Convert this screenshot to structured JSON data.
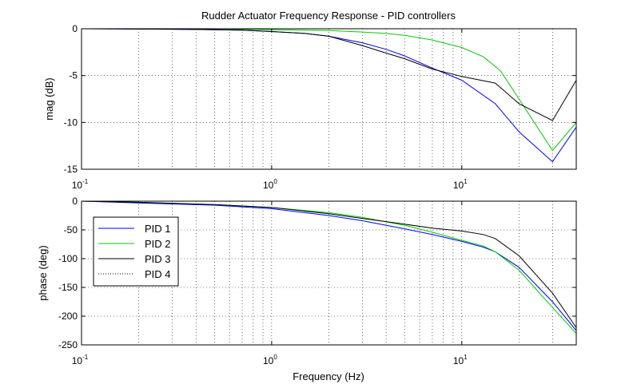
{
  "chart_data": [
    {
      "type": "line",
      "title": "Rudder Actuator Frequency Response - PID controllers",
      "xlabel": "",
      "ylabel": "mag (dB)",
      "xscale": "log",
      "xlim": [
        0.1,
        40
      ],
      "ylim": [
        -15,
        0
      ],
      "yticks": [
        0,
        -5,
        -10,
        -15
      ],
      "ytick_labels": [
        "0",
        "-5",
        "-10",
        "-15"
      ],
      "xtick_labels": [
        {
          "base": "10",
          "exp": "-1"
        },
        {
          "base": "10",
          "exp": "0"
        },
        {
          "base": "10",
          "exp": "1"
        }
      ],
      "grid": true,
      "series": [
        {
          "name": "PID 1",
          "color": "#0000ff",
          "points": [
            [
              0.1,
              0
            ],
            [
              0.3,
              -0.05
            ],
            [
              0.5,
              -0.1
            ],
            [
              0.7,
              -0.15
            ],
            [
              1,
              -0.3
            ],
            [
              1.5,
              -0.5
            ],
            [
              2,
              -0.8
            ],
            [
              3,
              -1.5
            ],
            [
              4,
              -2.2
            ],
            [
              5,
              -2.9
            ],
            [
              7,
              -4.2
            ],
            [
              10,
              -5.5
            ],
            [
              15,
              -8
            ],
            [
              20,
              -11
            ],
            [
              30,
              -14.2
            ],
            [
              40,
              -10.5
            ]
          ]
        },
        {
          "name": "PID 2",
          "color": "#00cc00",
          "points": [
            [
              0.1,
              0
            ],
            [
              0.5,
              0
            ],
            [
              1,
              -0.1
            ],
            [
              2,
              -0.2
            ],
            [
              3,
              -0.35
            ],
            [
              4,
              -0.5
            ],
            [
              5,
              -0.7
            ],
            [
              7,
              -1.2
            ],
            [
              10,
              -2
            ],
            [
              13,
              -3
            ],
            [
              16,
              -4.5
            ],
            [
              20,
              -7.5
            ],
            [
              30,
              -13
            ],
            [
              40,
              -10
            ]
          ]
        },
        {
          "name": "PID 3",
          "color": "#000000",
          "points": [
            [
              0.1,
              0
            ],
            [
              0.3,
              -0.05
            ],
            [
              0.5,
              -0.1
            ],
            [
              0.7,
              -0.15
            ],
            [
              1,
              -0.3
            ],
            [
              1.5,
              -0.5
            ],
            [
              2,
              -0.8
            ],
            [
              3,
              -1.8
            ],
            [
              4,
              -2.6
            ],
            [
              5,
              -3.2
            ],
            [
              7,
              -4.3
            ],
            [
              10,
              -5.1
            ],
            [
              15,
              -5.8
            ],
            [
              20,
              -8
            ],
            [
              30,
              -9.8
            ],
            [
              40,
              -5.5
            ]
          ]
        },
        {
          "name": "PID 4",
          "color": "#000000",
          "dash": "1,2",
          "points": []
        }
      ],
      "legend": {
        "location": "none"
      }
    },
    {
      "type": "line",
      "title": "",
      "xlabel": "Frequency (Hz)",
      "ylabel": "phase (deg)",
      "xscale": "log",
      "xlim": [
        0.1,
        40
      ],
      "ylim": [
        -250,
        0
      ],
      "yticks": [
        0,
        -50,
        -100,
        -150,
        -200,
        -250
      ],
      "ytick_labels": [
        "0",
        "-50",
        "-100",
        "-150",
        "-200",
        "-250"
      ],
      "xtick_labels": [
        {
          "base": "10",
          "exp": "-1"
        },
        {
          "base": "10",
          "exp": "0"
        },
        {
          "base": "10",
          "exp": "1"
        }
      ],
      "grid": true,
      "series": [
        {
          "name": "PID 1",
          "color": "#0000ff",
          "points": [
            [
              0.1,
              0
            ],
            [
              0.2,
              -3
            ],
            [
              0.5,
              -7
            ],
            [
              1,
              -13
            ],
            [
              2,
              -25
            ],
            [
              3,
              -34
            ],
            [
              5,
              -48
            ],
            [
              7,
              -58
            ],
            [
              10,
              -70
            ],
            [
              13,
              -80
            ],
            [
              15,
              -88
            ],
            [
              20,
              -115
            ],
            [
              30,
              -175
            ],
            [
              40,
              -225
            ]
          ]
        },
        {
          "name": "PID 2",
          "color": "#00cc00",
          "points": [
            [
              0.1,
              0
            ],
            [
              0.2,
              -2
            ],
            [
              0.5,
              -6
            ],
            [
              1,
              -11
            ],
            [
              2,
              -20
            ],
            [
              3,
              -28
            ],
            [
              5,
              -42
            ],
            [
              7,
              -54
            ],
            [
              10,
              -68
            ],
            [
              13,
              -78
            ],
            [
              15,
              -88
            ],
            [
              20,
              -120
            ],
            [
              30,
              -185
            ],
            [
              40,
              -230
            ]
          ]
        },
        {
          "name": "PID 3",
          "color": "#000000",
          "points": [
            [
              0.1,
              0
            ],
            [
              0.2,
              -2
            ],
            [
              0.5,
              -6
            ],
            [
              1,
              -11
            ],
            [
              2,
              -22
            ],
            [
              3,
              -30
            ],
            [
              5,
              -40
            ],
            [
              7,
              -47
            ],
            [
              10,
              -52
            ],
            [
              13,
              -58
            ],
            [
              15,
              -65
            ],
            [
              20,
              -95
            ],
            [
              30,
              -160
            ],
            [
              40,
              -220
            ]
          ]
        },
        {
          "name": "PID 4",
          "color": "#000000",
          "dash": "1,2",
          "points": []
        }
      ],
      "legend": {
        "location": "top-left",
        "entries": [
          "PID 1",
          "PID 2",
          "PID 3",
          "PID 4"
        ]
      }
    }
  ]
}
